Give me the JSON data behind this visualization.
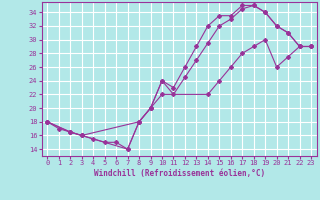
{
  "xlabel": "Windchill (Refroidissement éolien,°C)",
  "bg_color": "#b2e8e8",
  "grid_color": "#ffffff",
  "line_color": "#993399",
  "xlim": [
    -0.5,
    23.5
  ],
  "ylim": [
    13.0,
    35.5
  ],
  "xticks": [
    0,
    1,
    2,
    3,
    4,
    5,
    6,
    7,
    8,
    9,
    10,
    11,
    12,
    13,
    14,
    15,
    16,
    17,
    18,
    19,
    20,
    21,
    22,
    23
  ],
  "yticks": [
    14,
    16,
    18,
    20,
    22,
    24,
    26,
    28,
    30,
    32,
    34
  ],
  "curve1_x": [
    0,
    1,
    2,
    3,
    4,
    5,
    6,
    7,
    8,
    9,
    10,
    11,
    12,
    13,
    14,
    15,
    16,
    17,
    18,
    19,
    20,
    21,
    22,
    23
  ],
  "curve1_y": [
    18,
    17,
    16.5,
    16,
    15.5,
    15,
    15,
    14,
    18,
    20,
    24,
    23,
    26,
    29,
    32,
    33.5,
    33.5,
    35,
    35,
    34,
    32,
    31,
    29,
    29
  ],
  "curve2_x": [
    0,
    2,
    3,
    8,
    9,
    10,
    11,
    12,
    13,
    14,
    15,
    16,
    17,
    18,
    19,
    20,
    21,
    22,
    23
  ],
  "curve2_y": [
    18,
    16.5,
    16,
    18,
    20,
    24,
    22,
    24.5,
    27,
    29.5,
    32,
    33,
    34.5,
    35,
    34,
    32,
    31,
    29,
    29
  ],
  "curve3_x": [
    0,
    2,
    3,
    7,
    8,
    9,
    10,
    14,
    15,
    16,
    17,
    18,
    19,
    20,
    21,
    22,
    23
  ],
  "curve3_y": [
    18,
    16.5,
    16,
    14,
    18,
    20,
    22,
    22,
    24,
    26,
    28,
    29,
    30,
    26,
    27.5,
    29,
    29
  ]
}
